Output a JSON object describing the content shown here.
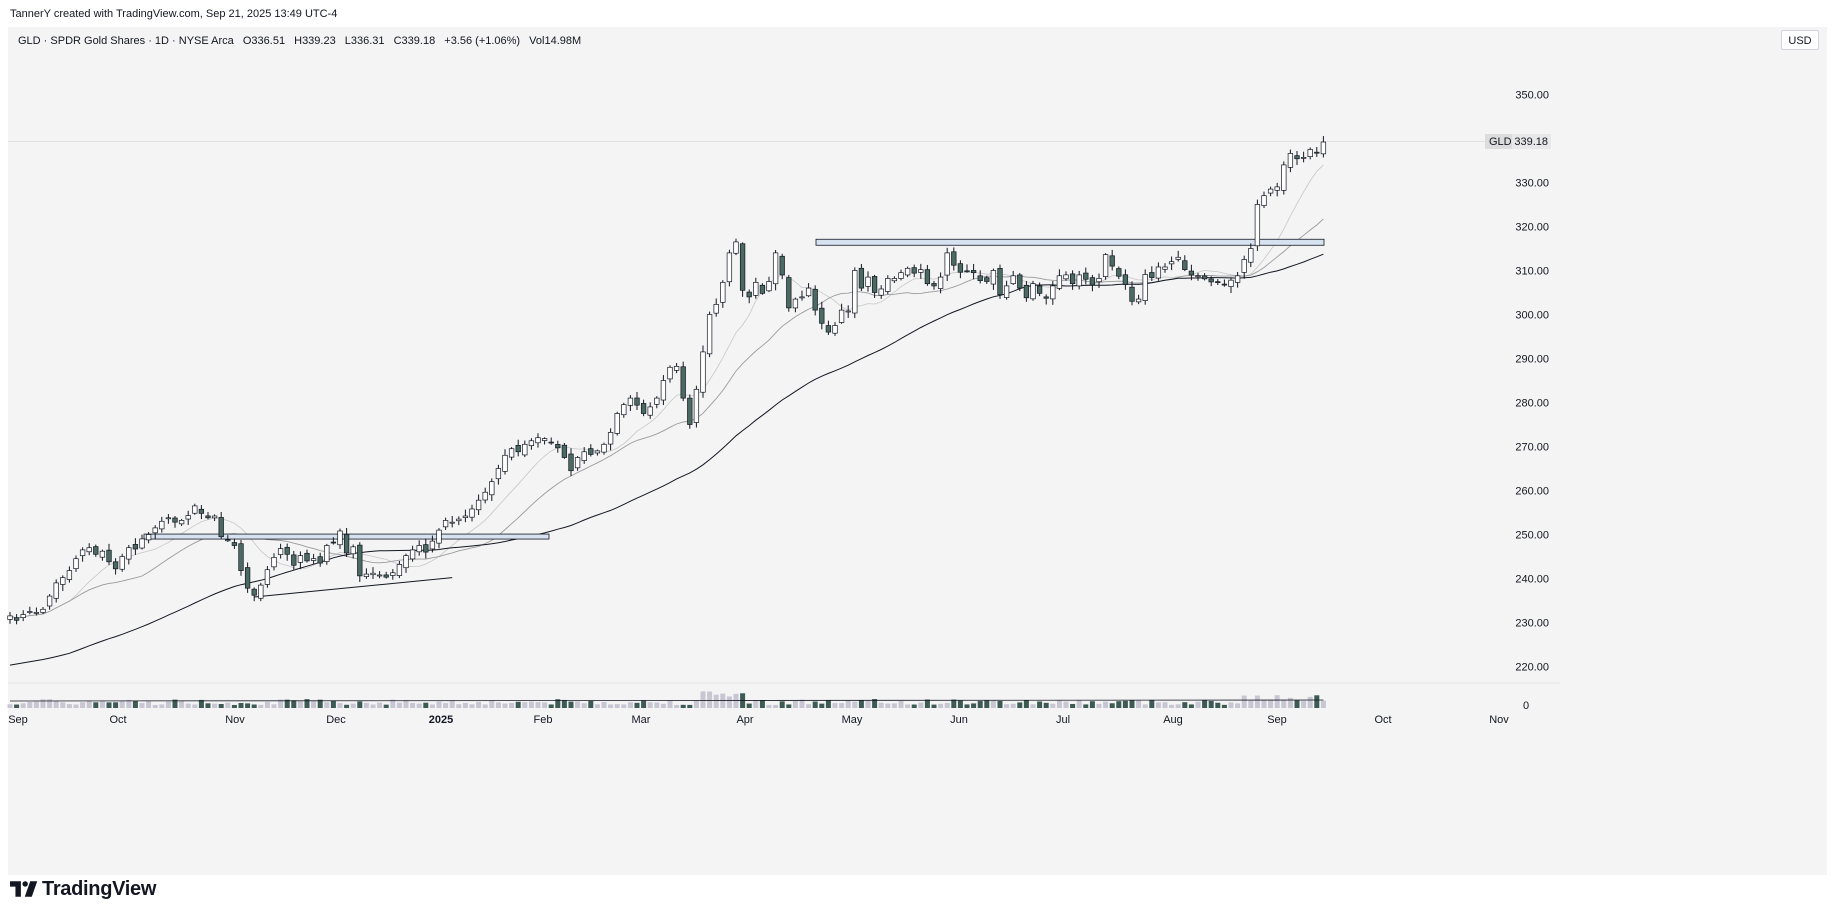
{
  "header": {
    "credit": "TannerY created with TradingView.com, Sep 21, 2025 13:49 UTC-4",
    "symbol_desc": "GLD · SPDR Gold Shares · 1D · NYSE Arca",
    "open": "O336.51",
    "high": "H339.23",
    "low": "L336.31",
    "close": "C339.18",
    "change": "+3.56 (+1.06%)",
    "volume": "Vol14.98M"
  },
  "currency_button": "USD",
  "price_label": {
    "ticker": "GLD",
    "value": "339.18"
  },
  "brand": {
    "name": "TradingView",
    "logo_icon": "tradingview-logo-icon"
  },
  "chart_data": {
    "type": "candlestick",
    "title": "",
    "xlabel": "",
    "ylabel": "",
    "ylim": [
      214,
      357
    ],
    "y_ticks": [
      220,
      230,
      240,
      250,
      260,
      270,
      280,
      290,
      300,
      310,
      320,
      330,
      340,
      350
    ],
    "y_tick_labels": [
      "220.00",
      "230.00",
      "240.00",
      "250.00",
      "260.00",
      "270.00",
      "280.00",
      "290.00",
      "300.00",
      "310.00",
      "320.00",
      "330.00",
      "",
      "350.00"
    ],
    "volume_axis_label": "0",
    "x_tick_labels": [
      "Sep",
      "Oct",
      "Nov",
      "Dec",
      "2025",
      "Feb",
      "Mar",
      "Apr",
      "May",
      "Jun",
      "Jul",
      "Aug",
      "Sep",
      "Oct",
      "Nov"
    ],
    "last_close": 339.18,
    "daily_closes_approx": [
      231.5,
      230.5,
      231.8,
      232.5,
      232.3,
      233.0,
      236.0,
      239.0,
      240.2,
      241.8,
      244.5,
      246.5,
      247.0,
      245.5,
      246.2,
      243.8,
      242.2,
      245.0,
      247.0,
      246.7,
      249.0,
      250.0,
      251.5,
      253.0,
      253.8,
      252.8,
      253.2,
      254.3,
      256.5,
      254.8,
      253.8,
      254.2,
      249.5,
      248.8,
      247.5,
      241.8,
      237.8,
      236.2,
      238.5,
      242.0,
      244.8,
      246.8,
      245.5,
      243.0,
      245.2,
      244.0,
      244.5,
      243.5,
      247.5,
      248.2,
      250.8,
      245.8,
      247.2,
      240.6,
      241.0,
      241.2,
      240.8,
      240.3,
      241.3,
      243.2,
      245.2,
      246.5,
      247.5,
      246.0,
      248.5,
      251.0,
      253.2,
      252.8,
      253.5,
      254.2,
      255.8,
      257.8,
      259.6,
      262.0,
      265.0,
      268.0,
      269.5,
      268.8,
      270.5,
      271.3,
      272.0,
      271.8,
      270.8,
      269.7,
      267.5,
      264.5,
      267.5,
      268.8,
      268.2,
      269.0,
      270.5,
      273.2,
      277.5,
      279.5,
      281.0,
      279.4,
      277.5,
      279.0,
      281.0,
      285.0,
      288.0,
      288.2,
      281.0,
      275.0,
      283.0,
      291.5,
      300.0,
      302.3,
      307.3,
      314.0,
      316.5,
      305.5,
      304.0,
      307.3,
      304.8,
      307.5,
      314.0,
      309.0,
      301.5,
      303.5,
      304.0,
      306.0,
      301.0,
      298.0,
      296.0,
      297.5,
      301.0,
      300.8,
      310.0,
      306.0,
      308.5,
      305.0,
      305.8,
      308.2,
      308.2,
      309.5,
      310.5,
      309.4,
      310.2,
      307.0,
      306.5,
      308.5,
      314.0,
      311.2,
      309.6,
      309.8,
      309.5,
      307.7,
      307.5,
      310.0,
      304.5,
      306.5,
      308.8,
      306.0,
      303.8,
      307.0,
      304.8,
      303.7,
      306.5,
      308.8,
      309.0,
      307.0,
      309.0,
      308.0,
      306.7,
      308.2,
      313.6,
      311.0,
      308.7,
      306.8,
      303.0,
      303.5,
      309.1,
      308.4,
      310.8,
      310.8,
      312.0,
      313.0,
      310.2,
      309.0,
      308.8,
      308.1,
      307.4,
      307.3,
      306.8,
      307.8,
      308.8,
      312.5,
      315.0,
      325.0,
      327.0,
      328.5,
      329.0,
      334.0,
      336.6,
      335.4,
      335.7,
      337.5,
      336.7,
      339.2
    ],
    "key_levels": [
      {
        "price": 316.5,
        "label": "resistance box 1"
      },
      {
        "price": 249.5,
        "label": "resistance box 2"
      }
    ],
    "series": [
      {
        "name": "",
        "kind": "price candles"
      },
      {
        "name": "",
        "kind": "short moving average"
      },
      {
        "name": "",
        "kind": "medium moving average"
      },
      {
        "name": "",
        "kind": "long moving average"
      },
      {
        "name": "",
        "kind": "volume"
      }
    ],
    "colors": {
      "bull": "#ffffff",
      "bear": "#4b6a62",
      "wick": "#131722",
      "vol_bull": "#c9c6d4",
      "vol_bear": "#3d5b53",
      "box_fill": "#d6e2f0"
    },
    "grid": false,
    "legend": "none"
  }
}
